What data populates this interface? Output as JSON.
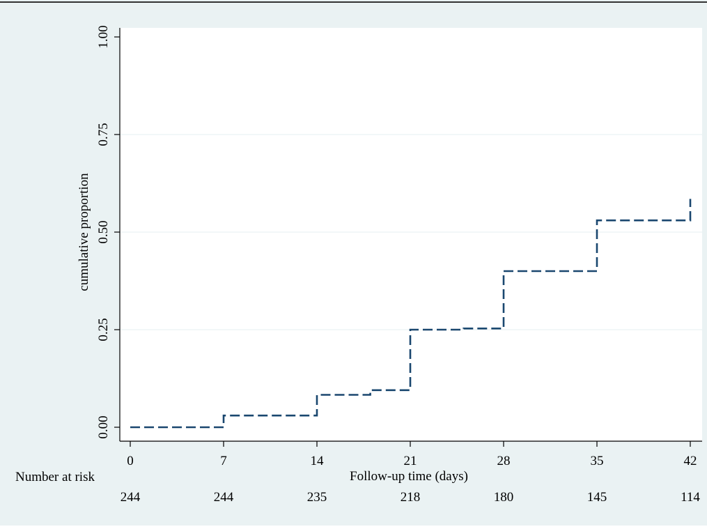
{
  "colors": {
    "background": "#eaf2f3",
    "plot_background": "#ffffff",
    "grid": "#eaf2f3",
    "curve": "#1a476f",
    "axis": "#000000",
    "top_rule": "#333333"
  },
  "chart_data": {
    "type": "line",
    "style": "step",
    "xlabel": "Follow-up time (days)",
    "ylabel": "cumulative proportion",
    "xlim": [
      0,
      42
    ],
    "ylim": [
      0,
      1
    ],
    "x_ticks": [
      0,
      7,
      14,
      21,
      28,
      35,
      42
    ],
    "x_tick_labels": [
      "0",
      "7",
      "14",
      "21",
      "28",
      "35",
      "42"
    ],
    "y_ticks": [
      0,
      0.25,
      0.5,
      0.75,
      1
    ],
    "y_tick_labels": [
      "0.00",
      "0.25",
      "0.50",
      "0.75",
      "1.00"
    ],
    "grid": "horizontal",
    "legend": "none",
    "series": [
      {
        "line_style": "dashed",
        "points": [
          [
            0,
            0
          ],
          [
            7,
            0
          ],
          [
            7,
            0.03
          ],
          [
            14,
            0.03
          ],
          [
            14,
            0.083
          ],
          [
            18,
            0.083
          ],
          [
            18,
            0.095
          ],
          [
            21,
            0.095
          ],
          [
            21,
            0.25
          ],
          [
            25,
            0.25
          ],
          [
            25,
            0.253
          ],
          [
            28,
            0.253
          ],
          [
            28,
            0.4
          ],
          [
            35,
            0.4
          ],
          [
            35,
            0.53
          ],
          [
            42,
            0.53
          ],
          [
            42,
            0.585
          ]
        ]
      }
    ],
    "risk_table": {
      "label": "Number at risk",
      "times": [
        0,
        7,
        14,
        21,
        28,
        35,
        42
      ],
      "counts": [
        "244",
        "244",
        "235",
        "218",
        "180",
        "145",
        "114"
      ]
    }
  }
}
